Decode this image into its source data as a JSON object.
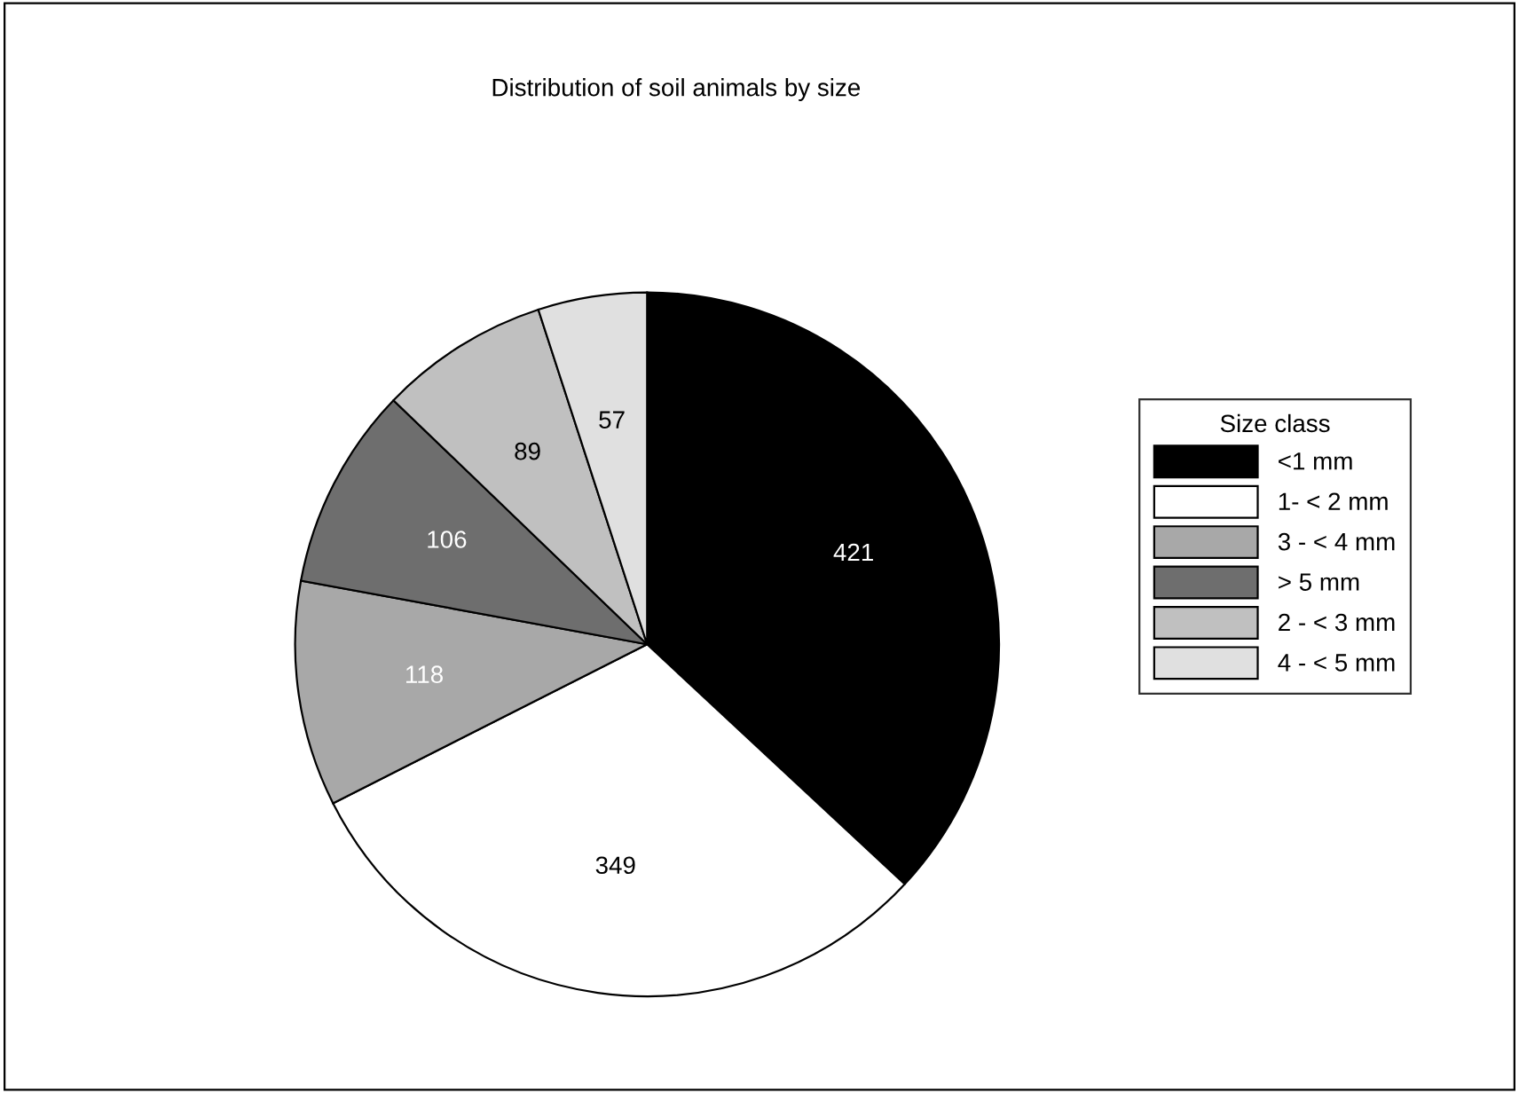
{
  "chart_data": {
    "type": "pie",
    "title": "Distribution of soil animals by size",
    "legend_title": "Size class",
    "categories": [
      "<1 mm",
      "1- < 2 mm",
      "3 - < 4 mm",
      "> 5 mm",
      "2 - < 3 mm",
      "4 - < 5 mm"
    ],
    "values": [
      421,
      349,
      118,
      106,
      89,
      57
    ],
    "colors": [
      "#000000",
      "#ffffff",
      "#a8a8a8",
      "#6e6e6e",
      "#c0c0c0",
      "#e0e0e0"
    ],
    "data_labels": true,
    "legend": "right"
  }
}
